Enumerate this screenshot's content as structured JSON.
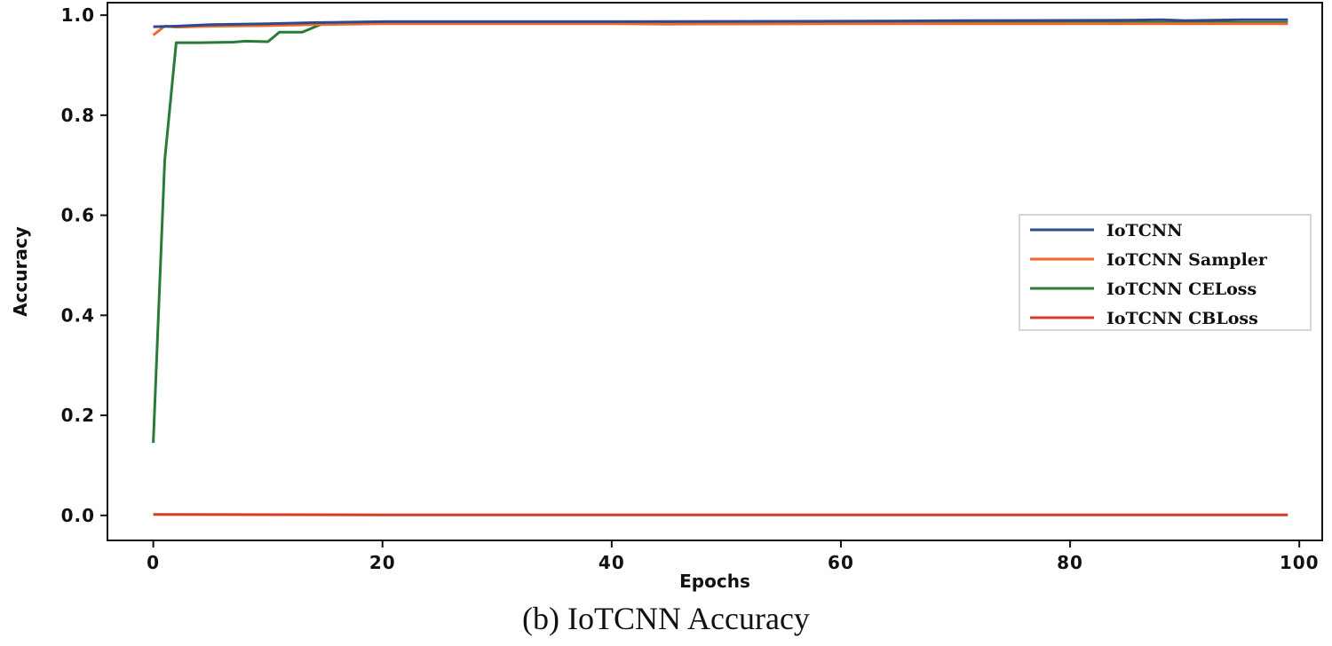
{
  "caption": "(b) IoTCNN Accuracy",
  "chart_data": {
    "type": "line",
    "title": "",
    "xlabel": "Epochs",
    "ylabel": "Accuracy",
    "xlim": [
      -4,
      102
    ],
    "ylim": [
      -0.05,
      1.025
    ],
    "xticks": [
      0,
      20,
      40,
      60,
      80,
      100
    ],
    "xtick_labels": [
      "0",
      "20",
      "40",
      "60",
      "80",
      "100"
    ],
    "yticks": [
      0.0,
      0.2,
      0.4,
      0.6,
      0.8,
      1.0
    ],
    "ytick_labels": [
      "0.0",
      "0.2",
      "0.4",
      "0.6",
      "0.8",
      "1.0"
    ],
    "grid": false,
    "legend_position": "center-right",
    "series": [
      {
        "name": "IoTCNN",
        "color": "#2e4a8f",
        "x": [
          0,
          2,
          5,
          10,
          14,
          20,
          40,
          60,
          70,
          85,
          88,
          90,
          95,
          99
        ],
        "y": [
          0.977,
          0.978,
          0.981,
          0.983,
          0.985,
          0.987,
          0.987,
          0.988,
          0.989,
          0.99,
          0.991,
          0.989,
          0.991,
          0.991
        ]
      },
      {
        "name": "IoTCNN Sampler",
        "color": "#ef6a28",
        "x": [
          0,
          1,
          2,
          5,
          10,
          14,
          20,
          40,
          45,
          60,
          70,
          80,
          90,
          99
        ],
        "y": [
          0.96,
          0.978,
          0.976,
          0.978,
          0.979,
          0.981,
          0.983,
          0.983,
          0.982,
          0.983,
          0.983,
          0.983,
          0.983,
          0.983
        ]
      },
      {
        "name": "IoTCNN CELoss",
        "color": "#2a7a3a",
        "x": [
          0,
          1,
          2,
          4,
          7,
          8,
          10,
          11,
          13,
          15,
          20,
          40,
          60,
          80,
          99
        ],
        "y": [
          0.145,
          0.71,
          0.945,
          0.945,
          0.946,
          0.948,
          0.947,
          0.966,
          0.966,
          0.985,
          0.985,
          0.985,
          0.985,
          0.985,
          0.985
        ]
      },
      {
        "name": "IoTCNN CBLoss",
        "color": "#d63b2a",
        "x": [
          0,
          20,
          40,
          60,
          80,
          99
        ],
        "y": [
          0.002,
          0.001,
          0.001,
          0.001,
          0.001,
          0.001
        ]
      }
    ]
  }
}
